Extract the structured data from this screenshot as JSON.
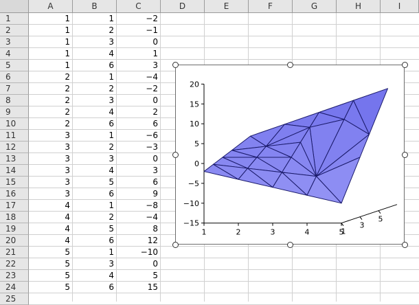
{
  "columns": [
    "A",
    "B",
    "C",
    "D",
    "E",
    "F",
    "G",
    "H",
    "I"
  ],
  "rows": [
    "1",
    "2",
    "3",
    "4",
    "5",
    "6",
    "7",
    "8",
    "9",
    "10",
    "11",
    "12",
    "13",
    "14",
    "15",
    "16",
    "17",
    "18",
    "19",
    "20",
    "21",
    "22",
    "23",
    "24",
    "25"
  ],
  "cells": [
    [
      "1",
      "1",
      "−2"
    ],
    [
      "1",
      "2",
      "−1"
    ],
    [
      "1",
      "3",
      "0"
    ],
    [
      "1",
      "4",
      "1"
    ],
    [
      "1",
      "6",
      "3"
    ],
    [
      "2",
      "1",
      "−4"
    ],
    [
      "2",
      "2",
      "−2"
    ],
    [
      "2",
      "3",
      "0"
    ],
    [
      "2",
      "4",
      "2"
    ],
    [
      "2",
      "6",
      "6"
    ],
    [
      "3",
      "1",
      "−6"
    ],
    [
      "3",
      "2",
      "−3"
    ],
    [
      "3",
      "3",
      "0"
    ],
    [
      "3",
      "4",
      "3"
    ],
    [
      "3",
      "5",
      "6"
    ],
    [
      "3",
      "6",
      "9"
    ],
    [
      "4",
      "1",
      "−8"
    ],
    [
      "4",
      "2",
      "−4"
    ],
    [
      "4",
      "5",
      "8"
    ],
    [
      "4",
      "6",
      "12"
    ],
    [
      "5",
      "1",
      "−10"
    ],
    [
      "5",
      "3",
      "0"
    ],
    [
      "5",
      "4",
      "5"
    ],
    [
      "5",
      "6",
      "15"
    ]
  ],
  "chart_data": {
    "type": "surface",
    "x_ticks": [
      "1",
      "2",
      "3",
      "4",
      "5"
    ],
    "y_ticks": [
      "1",
      "3",
      "5"
    ],
    "z_ticks": [
      "20",
      "15",
      "10",
      "5",
      "0",
      "−5",
      "−10",
      "−15"
    ],
    "zlim": [
      -15,
      20
    ],
    "fill_color": "#8a8aee",
    "edge_color": "#1a1a6a",
    "points": [
      {
        "x": 1,
        "y": 1,
        "z": -2
      },
      {
        "x": 1,
        "y": 2,
        "z": -1
      },
      {
        "x": 1,
        "y": 3,
        "z": 0
      },
      {
        "x": 1,
        "y": 4,
        "z": 1
      },
      {
        "x": 1,
        "y": 6,
        "z": 3
      },
      {
        "x": 2,
        "y": 1,
        "z": -4
      },
      {
        "x": 2,
        "y": 2,
        "z": -2
      },
      {
        "x": 2,
        "y": 3,
        "z": 0
      },
      {
        "x": 2,
        "y": 4,
        "z": 2
      },
      {
        "x": 2,
        "y": 6,
        "z": 6
      },
      {
        "x": 3,
        "y": 1,
        "z": -6
      },
      {
        "x": 3,
        "y": 2,
        "z": -3
      },
      {
        "x": 3,
        "y": 3,
        "z": 0
      },
      {
        "x": 3,
        "y": 4,
        "z": 3
      },
      {
        "x": 3,
        "y": 5,
        "z": 6
      },
      {
        "x": 3,
        "y": 6,
        "z": 9
      },
      {
        "x": 4,
        "y": 1,
        "z": -8
      },
      {
        "x": 4,
        "y": 2,
        "z": -4
      },
      {
        "x": 4,
        "y": 5,
        "z": 8
      },
      {
        "x": 4,
        "y": 6,
        "z": 12
      },
      {
        "x": 5,
        "y": 1,
        "z": -10
      },
      {
        "x": 5,
        "y": 3,
        "z": 0
      },
      {
        "x": 5,
        "y": 4,
        "z": 5
      },
      {
        "x": 5,
        "y": 6,
        "z": 15
      }
    ]
  }
}
